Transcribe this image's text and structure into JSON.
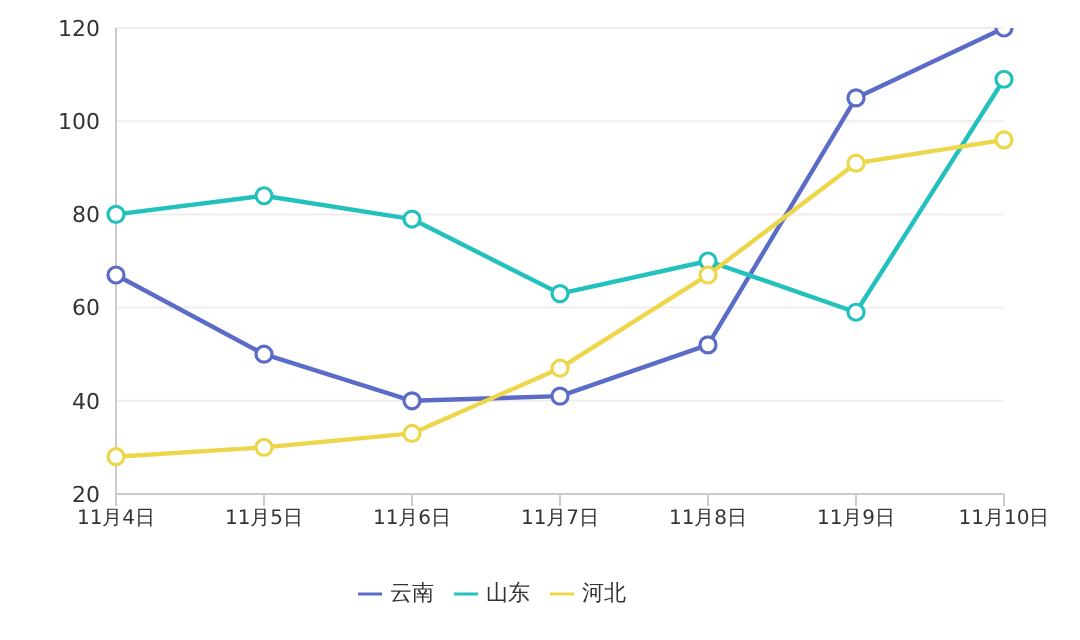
{
  "chart_data": {
    "type": "line",
    "categories": [
      "11月4日",
      "11月5日",
      "11月6日",
      "11月7日",
      "11月8日",
      "11月9日",
      "11月10日"
    ],
    "series": [
      {
        "name": "云南",
        "color": "#5b6bc8",
        "values": [
          67,
          50,
          40,
          41,
          52,
          105,
          120
        ]
      },
      {
        "name": "山东",
        "color": "#22c1bd",
        "values": [
          80,
          84,
          79,
          63,
          70,
          59,
          109
        ]
      },
      {
        "name": "河北",
        "color": "#eed64a",
        "values": [
          28,
          30,
          33,
          47,
          67,
          91,
          96
        ]
      }
    ],
    "ylim": [
      20,
      120
    ],
    "yticks": [
      20,
      40,
      60,
      80,
      100,
      120
    ],
    "grid": "y",
    "legend": "bottom",
    "marker": "circle",
    "line_style": "solid"
  }
}
